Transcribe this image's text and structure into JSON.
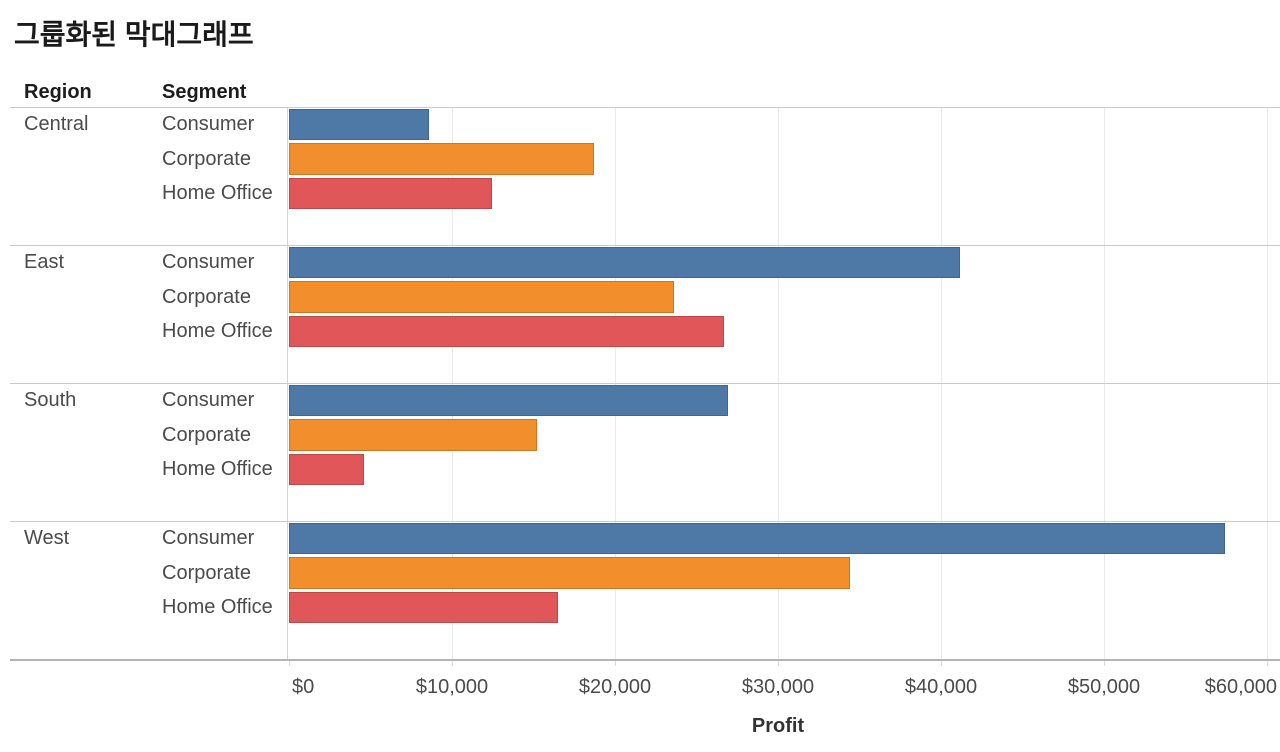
{
  "title": "그룹화된 막대그래프",
  "columns": {
    "region": "Region",
    "segment": "Segment"
  },
  "axis": {
    "title": "Profit",
    "tick_labels": [
      "$0",
      "$10,000",
      "$20,000",
      "$30,000",
      "$40,000",
      "$50,000",
      "$60,000"
    ],
    "tick_values": [
      0,
      10000,
      20000,
      30000,
      40000,
      50000,
      60000
    ]
  },
  "colors": {
    "consumer": "#4e79a7",
    "corporate": "#f28e2b",
    "home_office": "#e15759",
    "gridline": "#ebebeb",
    "divider": "#cbcbcb",
    "axis_line": "#b3b3b3"
  },
  "chart_data": {
    "type": "bar",
    "orientation": "horizontal",
    "title": "그룹화된 막대그래프",
    "xlabel": "Profit",
    "xlim": [
      0,
      60800
    ],
    "grid": true,
    "x_ticks": [
      0,
      10000,
      20000,
      30000,
      40000,
      50000,
      60000
    ],
    "x_tick_labels": [
      "$0",
      "$10,000",
      "$20,000",
      "$30,000",
      "$40,000",
      "$50,000",
      "$60,000"
    ],
    "series_colors": {
      "Consumer": "#4e79a7",
      "Corporate": "#f28e2b",
      "Home Office": "#e15759"
    },
    "groups": [
      {
        "region": "Central",
        "rows": [
          {
            "segment": "Consumer",
            "profit": 8564
          },
          {
            "segment": "Corporate",
            "profit": 18704
          },
          {
            "segment": "Home Office",
            "profit": 12438
          }
        ]
      },
      {
        "region": "East",
        "rows": [
          {
            "segment": "Consumer",
            "profit": 41191
          },
          {
            "segment": "Corporate",
            "profit": 23623
          },
          {
            "segment": "Home Office",
            "profit": 26709
          }
        ]
      },
      {
        "region": "South",
        "rows": [
          {
            "segment": "Consumer",
            "profit": 26914
          },
          {
            "segment": "Corporate",
            "profit": 15215
          },
          {
            "segment": "Home Office",
            "profit": 4620
          }
        ]
      },
      {
        "region": "West",
        "rows": [
          {
            "segment": "Consumer",
            "profit": 57451
          },
          {
            "segment": "Corporate",
            "profit": 34437
          },
          {
            "segment": "Home Office",
            "profit": 16530
          }
        ]
      }
    ]
  }
}
